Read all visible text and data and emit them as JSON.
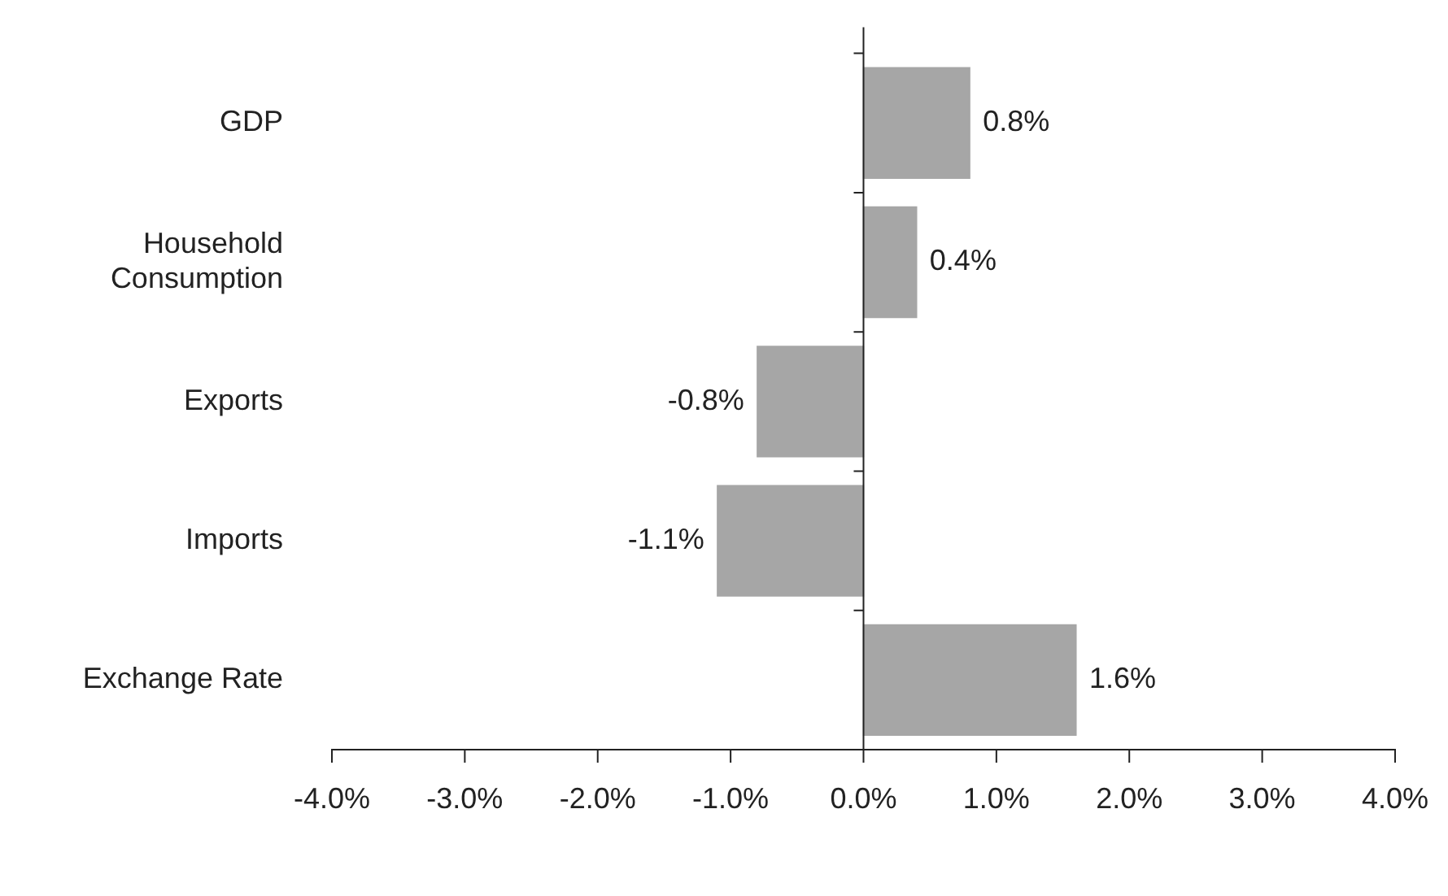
{
  "chart_data": {
    "type": "bar",
    "orientation": "horizontal",
    "categories": [
      "GDP",
      "Household Consumption",
      "Exports",
      "Imports",
      "Exchange Rate"
    ],
    "values": [
      0.8,
      0.4,
      -0.8,
      -1.1,
      1.6
    ],
    "value_labels": [
      "0.8%",
      "0.4%",
      "-0.8%",
      "-1.1%",
      "1.6%"
    ],
    "color": "#a6a6a6",
    "xlim": [
      -4,
      4
    ],
    "xticks": [
      {
        "value": -4,
        "label": "-4.0%"
      },
      {
        "value": -3,
        "label": "-3.0%"
      },
      {
        "value": -2,
        "label": "-2.0%"
      },
      {
        "value": -1,
        "label": "-1.0%"
      },
      {
        "value": 0,
        "label": "0.0%"
      },
      {
        "value": 1,
        "label": "1.0%"
      },
      {
        "value": 2,
        "label": "2.0%"
      },
      {
        "value": 3,
        "label": "3.0%"
      },
      {
        "value": 4,
        "label": "4.0%"
      }
    ],
    "legend": false
  }
}
